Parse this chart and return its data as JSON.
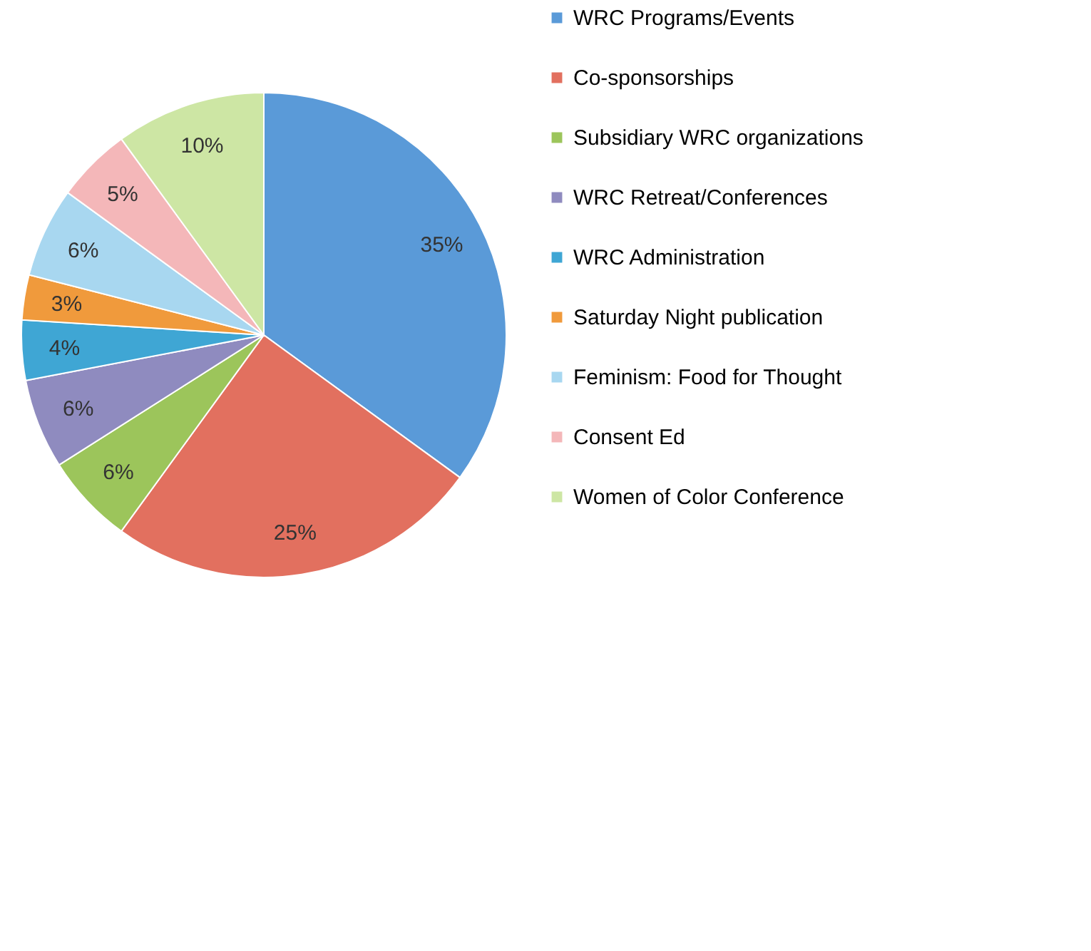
{
  "chart_data": {
    "type": "pie",
    "categories": [
      "WRC Programs/Events",
      "Co-sponsorships",
      "Subsidiary WRC organizations",
      "WRC Retreat/Conferences",
      "WRC Administration",
      "Saturday Night publication",
      "Feminism: Food for Thought",
      "Consent Ed",
      "Women of Color Conference"
    ],
    "values": [
      35,
      25,
      6,
      6,
      4,
      3,
      6,
      5,
      10
    ],
    "colors": [
      "#5a9ad8",
      "#e2705f",
      "#9cc55b",
      "#8f8bbf",
      "#3fa6d4",
      "#f09a3c",
      "#a8d7f0",
      "#f4b7b9",
      "#cde6a4"
    ],
    "value_labels": [
      "35%",
      "25%",
      "6%",
      "6%",
      "4%",
      "3%",
      "6%",
      "5%",
      "10%"
    ],
    "legend": "right"
  }
}
